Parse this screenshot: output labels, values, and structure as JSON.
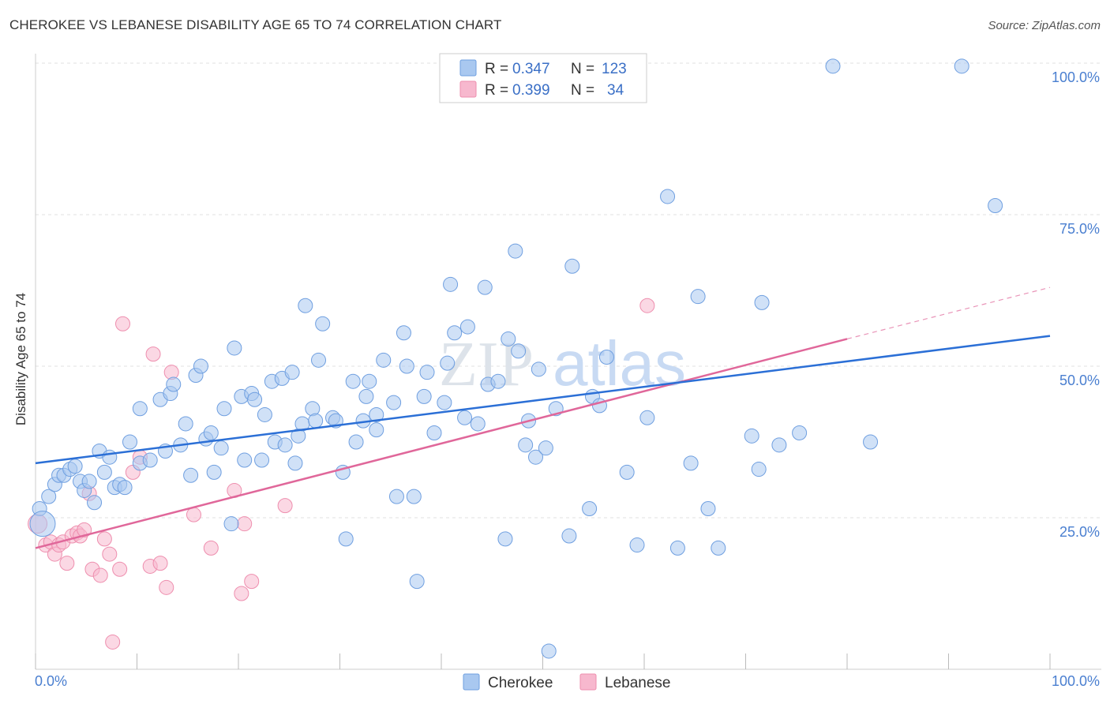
{
  "title": "CHEROKEE VS LEBANESE DISABILITY AGE 65 TO 74 CORRELATION CHART",
  "source": "Source: ZipAtlas.com",
  "watermark": "ZIPatlas",
  "colors": {
    "cherokee_fill": "#a9c8f0",
    "cherokee_stroke": "#6f9fe0",
    "cherokee_line": "#2b6fd6",
    "lebanese_fill": "#f7b8ce",
    "lebanese_stroke": "#ee8eae",
    "lebanese_line": "#e0679a",
    "tick_text": "#4a7fd0"
  },
  "legend": {
    "rows": [
      {
        "r_label": "R =",
        "r_value": "0.347",
        "n_label": "N =",
        "n_value": "123"
      },
      {
        "r_label": "R =",
        "r_value": "0.399",
        "n_label": "N =",
        "n_value": "34"
      }
    ]
  },
  "chart_data": {
    "type": "scatter",
    "title": "CHEROKEE VS LEBANESE DISABILITY AGE 65 TO 74 CORRELATION CHART",
    "xlabel": "",
    "ylabel": "Disability Age 65 to 74",
    "xlim": [
      0,
      100
    ],
    "ylim": [
      0,
      100
    ],
    "x_tick_labels": [
      "0.0%",
      "100.0%"
    ],
    "y_tick_labels": [
      "25.0%",
      "50.0%",
      "75.0%",
      "100.0%"
    ],
    "y_ticks": [
      25,
      50,
      75,
      100
    ],
    "grid": true,
    "legend_position": "top-center",
    "series": [
      {
        "name": "Cherokee",
        "r": 0.347,
        "n": 123,
        "trend": {
          "x": [
            0,
            100
          ],
          "y": [
            34,
            55
          ]
        },
        "points": [
          [
            0.4,
            26.5
          ],
          [
            0.7,
            24
          ],
          [
            1.3,
            28.5
          ],
          [
            1.9,
            30.5
          ],
          [
            2.3,
            32
          ],
          [
            2.8,
            32
          ],
          [
            3.4,
            33
          ],
          [
            3.9,
            33.5
          ],
          [
            4.4,
            31
          ],
          [
            4.8,
            29.5
          ],
          [
            5.3,
            31
          ],
          [
            5.8,
            27.5
          ],
          [
            6.3,
            36
          ],
          [
            6.8,
            32.5
          ],
          [
            7.3,
            35
          ],
          [
            7.8,
            30
          ],
          [
            8.3,
            30.5
          ],
          [
            8.8,
            30
          ],
          [
            9.3,
            37.5
          ],
          [
            10.3,
            43
          ],
          [
            10.3,
            34
          ],
          [
            11.3,
            34.5
          ],
          [
            12.3,
            44.5
          ],
          [
            12.8,
            36
          ],
          [
            13.3,
            45.5
          ],
          [
            13.6,
            47
          ],
          [
            14.3,
            37
          ],
          [
            14.8,
            40.5
          ],
          [
            15.3,
            32
          ],
          [
            15.8,
            48.5
          ],
          [
            16.3,
            50
          ],
          [
            16.8,
            38
          ],
          [
            17.3,
            39
          ],
          [
            17.6,
            32.5
          ],
          [
            18.3,
            36.5
          ],
          [
            18.6,
            43
          ],
          [
            19.3,
            24
          ],
          [
            19.6,
            53
          ],
          [
            20.3,
            45
          ],
          [
            20.6,
            34.5
          ],
          [
            21.3,
            45.5
          ],
          [
            21.6,
            44.5
          ],
          [
            22.3,
            34.5
          ],
          [
            22.6,
            42
          ],
          [
            23.3,
            47.5
          ],
          [
            23.6,
            37.5
          ],
          [
            24.3,
            48
          ],
          [
            24.6,
            37
          ],
          [
            25.3,
            49
          ],
          [
            25.6,
            34
          ],
          [
            25.9,
            38.5
          ],
          [
            26.3,
            40.5
          ],
          [
            26.6,
            60
          ],
          [
            27.3,
            43
          ],
          [
            27.6,
            41
          ],
          [
            27.9,
            51
          ],
          [
            28.3,
            57
          ],
          [
            29.3,
            41.5
          ],
          [
            29.6,
            41
          ],
          [
            30.3,
            32.5
          ],
          [
            30.6,
            21.5
          ],
          [
            31.3,
            47.5
          ],
          [
            31.6,
            37.5
          ],
          [
            32.3,
            41
          ],
          [
            32.6,
            45
          ],
          [
            32.9,
            47.5
          ],
          [
            33.6,
            39.5
          ],
          [
            33.6,
            42
          ],
          [
            34.3,
            51
          ],
          [
            35.3,
            44
          ],
          [
            35.6,
            28.5
          ],
          [
            36.3,
            55.5
          ],
          [
            36.6,
            50
          ],
          [
            37.3,
            28.5
          ],
          [
            37.6,
            14.5
          ],
          [
            38.3,
            45
          ],
          [
            38.6,
            49
          ],
          [
            39.3,
            39
          ],
          [
            40.3,
            44
          ],
          [
            40.6,
            50.5
          ],
          [
            40.9,
            63.5
          ],
          [
            41.3,
            55.5
          ],
          [
            42.3,
            41.5
          ],
          [
            42.6,
            56.5
          ],
          [
            43.6,
            40.5
          ],
          [
            44.3,
            63
          ],
          [
            44.6,
            47
          ],
          [
            45.6,
            47.5
          ],
          [
            46.3,
            21.5
          ],
          [
            46.6,
            54.5
          ],
          [
            47.3,
            69
          ],
          [
            47.6,
            52.5
          ],
          [
            48.3,
            37
          ],
          [
            48.6,
            41
          ],
          [
            49.3,
            35
          ],
          [
            49.6,
            49.5
          ],
          [
            50.3,
            36.5
          ],
          [
            50.6,
            3
          ],
          [
            51.3,
            43
          ],
          [
            52.6,
            22
          ],
          [
            52.9,
            66.5
          ],
          [
            54.6,
            26.5
          ],
          [
            54.9,
            45
          ],
          [
            55.6,
            43.5
          ],
          [
            56.3,
            51.5
          ],
          [
            58.3,
            32.5
          ],
          [
            59.3,
            20.5
          ],
          [
            60.3,
            41.5
          ],
          [
            62.3,
            78
          ],
          [
            63.3,
            20
          ],
          [
            64.6,
            34
          ],
          [
            65.3,
            61.5
          ],
          [
            66.3,
            26.5
          ],
          [
            67.3,
            20
          ],
          [
            70.6,
            38.5
          ],
          [
            71.3,
            33
          ],
          [
            71.6,
            60.5
          ],
          [
            73.3,
            37
          ],
          [
            75.3,
            39
          ],
          [
            78.6,
            99.5
          ],
          [
            82.3,
            37.5
          ],
          [
            91.3,
            99.5
          ],
          [
            94.6,
            76.5
          ]
        ]
      },
      {
        "name": "Lebanese",
        "r": 0.399,
        "n": 34,
        "trend": {
          "x": [
            0,
            80
          ],
          "y": [
            20,
            54.5
          ]
        },
        "trend_dashed": {
          "x": [
            80,
            100
          ],
          "y": [
            54.5,
            63
          ]
        },
        "points": [
          [
            0.2,
            24
          ],
          [
            1.0,
            20.5
          ],
          [
            1.5,
            21
          ],
          [
            1.9,
            19
          ],
          [
            2.3,
            20.5
          ],
          [
            2.7,
            21
          ],
          [
            3.1,
            17.5
          ],
          [
            3.6,
            22
          ],
          [
            4.1,
            22.5
          ],
          [
            4.4,
            22
          ],
          [
            4.8,
            23
          ],
          [
            5.3,
            29
          ],
          [
            5.6,
            16.5
          ],
          [
            6.4,
            15.5
          ],
          [
            6.8,
            21.5
          ],
          [
            7.3,
            19
          ],
          [
            7.6,
            4.5
          ],
          [
            8.3,
            16.5
          ],
          [
            8.6,
            57
          ],
          [
            9.6,
            32.5
          ],
          [
            10.3,
            35
          ],
          [
            11.3,
            17
          ],
          [
            11.6,
            52
          ],
          [
            12.3,
            17.5
          ],
          [
            12.9,
            13.5
          ],
          [
            13.4,
            49
          ],
          [
            15.6,
            25.5
          ],
          [
            17.3,
            20
          ],
          [
            19.6,
            29.5
          ],
          [
            20.3,
            12.5
          ],
          [
            20.6,
            24
          ],
          [
            21.3,
            14.5
          ],
          [
            24.6,
            27
          ],
          [
            60.3,
            60
          ]
        ]
      }
    ]
  },
  "bottom_legend": {
    "items": [
      {
        "label": "Cherokee"
      },
      {
        "label": "Lebanese"
      }
    ]
  }
}
